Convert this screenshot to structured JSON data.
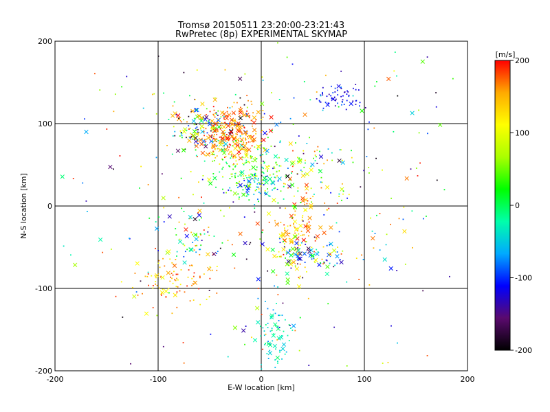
{
  "chart_data": {
    "type": "scatter",
    "title": "Tromsø 20150511 23:20:00-23:21:43",
    "subtitle": "RwPretec (8p) EXPERIMENTAL SKYMAP",
    "xlabel": "E-W location [km]",
    "ylabel": "N-S location [km]",
    "xlim": [
      -200,
      200
    ],
    "ylim": [
      -200,
      200
    ],
    "xticks": [
      "-200",
      "-100",
      "0",
      "100",
      "200"
    ],
    "yticks": [
      "-200",
      "-100",
      "0",
      "100",
      "200"
    ],
    "grid": true,
    "colorbar": {
      "label": "[m/s]",
      "min": -200,
      "max": 200,
      "ticks": [
        "-200",
        "-100",
        "0",
        "100",
        "200"
      ],
      "colormap": [
        "#000000",
        "#5a0a6e",
        "#0000ff",
        "#00aaff",
        "#00ffaa",
        "#00ff00",
        "#aaff00",
        "#ffff00",
        "#ffaa00",
        "#ff0000"
      ]
    },
    "markers": {
      "dot": "small dot/tick markers",
      "cross": "x markers"
    },
    "clusters": [
      {
        "x": -55,
        "y": 95,
        "sx": 18,
        "sy": 14,
        "n": 160,
        "vmin": -200,
        "vmax": 200,
        "cross": 0.25
      },
      {
        "x": -30,
        "y": 80,
        "sx": 15,
        "sy": 12,
        "n": 160,
        "vmin": 130,
        "vmax": 200,
        "cross": 0.35
      },
      {
        "x": -25,
        "y": 110,
        "sx": 18,
        "sy": 10,
        "n": 70,
        "vmin": 140,
        "vmax": 200,
        "cross": 0.3
      },
      {
        "x": -10,
        "y": 45,
        "sx": 25,
        "sy": 18,
        "n": 180,
        "vmin": -20,
        "vmax": 130,
        "cross": 0.1
      },
      {
        "x": -5,
        "y": 25,
        "sx": 10,
        "sy": 12,
        "n": 60,
        "vmin": -120,
        "vmax": 0,
        "cross": 0.2
      },
      {
        "x": 75,
        "y": 133,
        "sx": 10,
        "sy": 8,
        "n": 60,
        "vmin": -140,
        "vmax": -80,
        "cross": 0.05
      },
      {
        "x": 35,
        "y": -30,
        "sx": 12,
        "sy": 22,
        "n": 110,
        "vmin": 100,
        "vmax": 200,
        "cross": 0.4
      },
      {
        "x": 45,
        "y": -60,
        "sx": 15,
        "sy": 12,
        "n": 90,
        "vmin": -200,
        "vmax": 120,
        "cross": 0.45
      },
      {
        "x": 15,
        "y": -160,
        "sx": 10,
        "sy": 25,
        "n": 80,
        "vmin": -80,
        "vmax": 0,
        "cross": 0.35
      },
      {
        "x": -85,
        "y": -90,
        "sx": 25,
        "sy": 15,
        "n": 90,
        "vmin": 100,
        "vmax": 200,
        "cross": 0.1
      },
      {
        "x": -70,
        "y": -40,
        "sx": 15,
        "sy": 20,
        "n": 60,
        "vmin": -150,
        "vmax": 200,
        "cross": 0.2
      },
      {
        "x": 40,
        "y": 50,
        "sx": 25,
        "sy": 20,
        "n": 70,
        "vmin": -200,
        "vmax": 200,
        "cross": 0.3
      },
      {
        "x": 0,
        "y": 0,
        "sx": 110,
        "sy": 110,
        "n": 380,
        "vmin": -200,
        "vmax": 200,
        "cross": 0.15
      }
    ]
  }
}
